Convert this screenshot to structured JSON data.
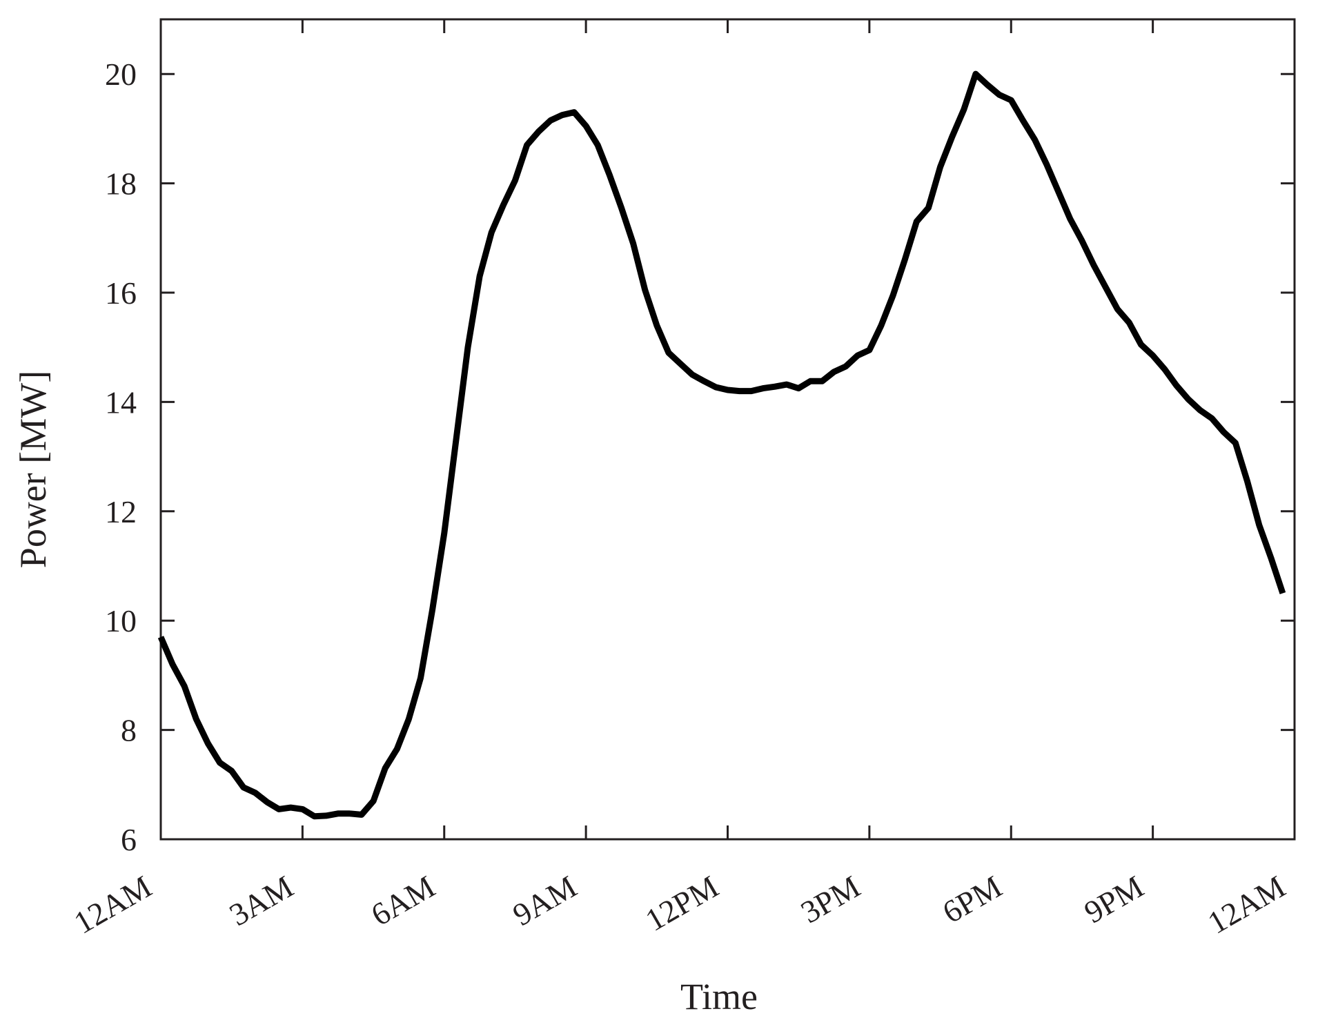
{
  "chart_data": {
    "type": "line",
    "title": "",
    "xlabel": "Time",
    "ylabel": "Power [MW]",
    "x_unit": "hours",
    "xlim": [
      0,
      24
    ],
    "ylim": [
      6,
      21
    ],
    "yticks": [
      6,
      8,
      10,
      12,
      14,
      16,
      18,
      20
    ],
    "xticks": [
      0,
      3,
      6,
      9,
      12,
      15,
      18,
      21,
      24
    ],
    "xtick_labels": [
      "12AM",
      "3AM",
      "6AM",
      "9AM",
      "12PM",
      "3PM",
      "6PM",
      "9PM",
      "12AM"
    ],
    "grid": false,
    "legend": "none",
    "line_color": "#000000",
    "series": [
      {
        "x": [
          0,
          0.25,
          0.5,
          0.75,
          1.0,
          1.25,
          1.5,
          1.75,
          2.0,
          2.25,
          2.5,
          2.75,
          3.0,
          3.25,
          3.5,
          3.75,
          4.0,
          4.25,
          4.5,
          4.75,
          5.0,
          5.25,
          5.5,
          5.75,
          6.0,
          6.25,
          6.5,
          6.75,
          7.0,
          7.25,
          7.5,
          7.75,
          8.0,
          8.25,
          8.5,
          8.75,
          9.0,
          9.25,
          9.5,
          9.75,
          10.0,
          10.25,
          10.5,
          10.75,
          11.0,
          11.25,
          11.5,
          11.75,
          12.0,
          12.25,
          12.5,
          12.75,
          13.0,
          13.25,
          13.5,
          13.75,
          14.0,
          14.25,
          14.5,
          14.75,
          15.0,
          15.25,
          15.5,
          15.75,
          16.0,
          16.25,
          16.5,
          16.75,
          17.0,
          17.25,
          17.5,
          17.75,
          18.0,
          18.25,
          18.5,
          18.75,
          19.0,
          19.25,
          19.5,
          19.75,
          20.0,
          20.25,
          20.5,
          20.75,
          21.0,
          21.25,
          21.5,
          21.75,
          22.0,
          22.25,
          22.5,
          22.75,
          23.0,
          23.25,
          23.5,
          23.75
        ],
        "y": [
          9.7,
          9.2,
          8.8,
          8.2,
          7.75,
          7.4,
          7.25,
          6.95,
          6.85,
          6.68,
          6.55,
          6.58,
          6.55,
          6.42,
          6.43,
          6.47,
          6.47,
          6.45,
          6.7,
          7.3,
          7.65,
          8.2,
          8.95,
          10.2,
          11.6,
          13.3,
          15.0,
          16.3,
          17.1,
          17.6,
          18.05,
          18.7,
          18.95,
          19.15,
          19.25,
          19.3,
          19.05,
          18.7,
          18.15,
          17.55,
          16.9,
          16.05,
          15.4,
          14.9,
          14.7,
          14.5,
          14.38,
          14.27,
          14.22,
          14.2,
          14.2,
          14.25,
          14.28,
          14.32,
          14.25,
          14.38,
          14.38,
          14.55,
          14.65,
          14.85,
          14.95,
          15.4,
          15.95,
          16.6,
          17.3,
          17.55,
          18.3,
          18.85,
          19.35,
          20.0,
          19.8,
          19.62,
          19.52,
          19.15,
          18.8,
          18.35,
          17.85,
          17.35,
          16.95,
          16.5,
          16.1,
          15.7,
          15.45,
          15.05,
          14.85,
          14.6,
          14.3,
          14.05,
          13.85,
          13.7,
          13.45,
          13.25,
          12.55,
          11.75,
          11.15,
          10.5
        ]
      }
    ]
  }
}
